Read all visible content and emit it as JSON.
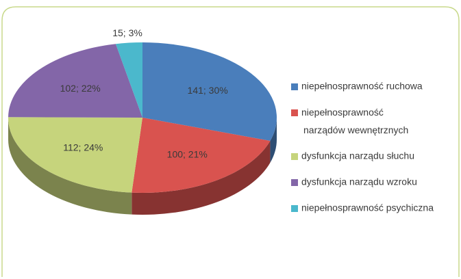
{
  "chart_data": {
    "type": "pie",
    "series": [
      {
        "categories": [
          "niepełnosprawność ruchowa",
          "niepełnosprawność narządów wewnętrznych",
          "dysfunkcja narządu słuchu",
          "dysfunkcja narządu wzroku",
          "niepełnosprawność psychiczna"
        ],
        "values": [
          141,
          100,
          112,
          102,
          15
        ],
        "value_labels": [
          "141; 30%",
          "100; 21%",
          "112; 24%",
          "102; 22%",
          "15; 3%"
        ],
        "colors": [
          "#4a7ebb",
          "#d9534f",
          "#c6d47c",
          "#8366a8",
          "#4bb8cc"
        ]
      }
    ],
    "legend": "right"
  }
}
